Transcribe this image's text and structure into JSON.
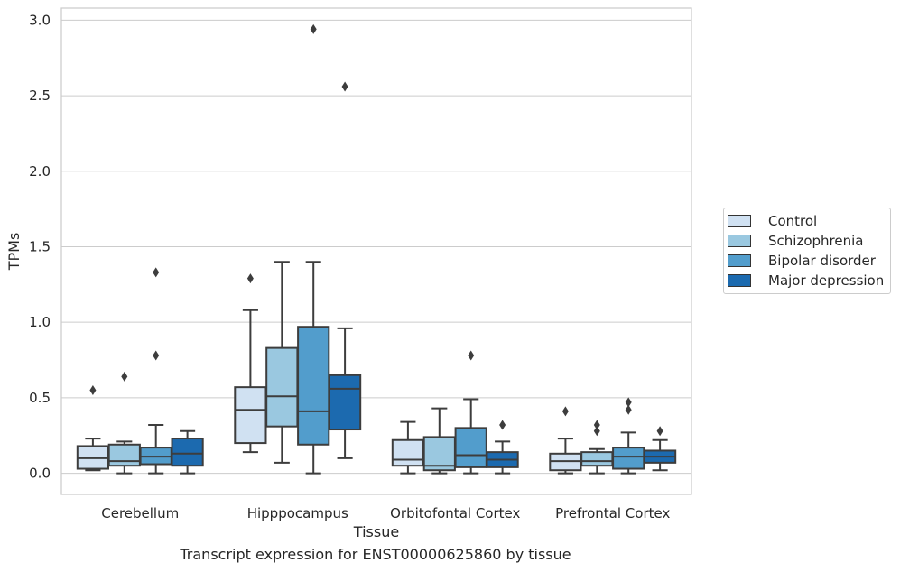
{
  "caption": "Transcript expression for ENST00000625860 by tissue",
  "chart_data": {
    "type": "boxplot",
    "xlabel": "Tissue",
    "ylabel": "TPMs",
    "ylim": [
      -0.14,
      3.08
    ],
    "yticks": [
      "0.0",
      "0.5",
      "1.0",
      "1.5",
      "2.0",
      "2.5",
      "3.0"
    ],
    "grid": true,
    "legend_position": "right",
    "categories": [
      "Cerebellum",
      "Hipppocampus",
      "Orbitofontal Cortex",
      "Prefrontal Cortex"
    ],
    "series": [
      {
        "name": "Control",
        "color": "#d0e1f2",
        "boxes": [
          {
            "whislo": 0.02,
            "q1": 0.03,
            "med": 0.1,
            "q3": 0.18,
            "whishi": 0.23,
            "fliers": [
              0.55
            ]
          },
          {
            "whislo": 0.14,
            "q1": 0.2,
            "med": 0.42,
            "q3": 0.57,
            "whishi": 1.08,
            "fliers": [
              1.29
            ]
          },
          {
            "whislo": 0.0,
            "q1": 0.05,
            "med": 0.09,
            "q3": 0.22,
            "whishi": 0.34,
            "fliers": []
          },
          {
            "whislo": 0.0,
            "q1": 0.02,
            "med": 0.08,
            "q3": 0.13,
            "whishi": 0.23,
            "fliers": [
              0.41
            ]
          }
        ]
      },
      {
        "name": "Schizophrenia",
        "color": "#9ac8e0",
        "boxes": [
          {
            "whislo": 0.0,
            "q1": 0.05,
            "med": 0.08,
            "q3": 0.19,
            "whishi": 0.21,
            "fliers": [
              0.64
            ]
          },
          {
            "whislo": 0.07,
            "q1": 0.31,
            "med": 0.51,
            "q3": 0.83,
            "whishi": 1.4,
            "fliers": []
          },
          {
            "whislo": 0.0,
            "q1": 0.02,
            "med": 0.05,
            "q3": 0.24,
            "whishi": 0.43,
            "fliers": []
          },
          {
            "whislo": 0.0,
            "q1": 0.05,
            "med": 0.08,
            "q3": 0.14,
            "whishi": 0.16,
            "fliers": [
              0.28,
              0.32
            ]
          }
        ]
      },
      {
        "name": "Bipolar disorder",
        "color": "#529dcc",
        "boxes": [
          {
            "whislo": 0.0,
            "q1": 0.06,
            "med": 0.11,
            "q3": 0.17,
            "whishi": 0.32,
            "fliers": [
              0.78,
              1.33
            ]
          },
          {
            "whislo": 0.0,
            "q1": 0.19,
            "med": 0.41,
            "q3": 0.97,
            "whishi": 1.4,
            "fliers": [
              2.94
            ]
          },
          {
            "whislo": 0.0,
            "q1": 0.04,
            "med": 0.12,
            "q3": 0.3,
            "whishi": 0.49,
            "fliers": [
              0.78
            ]
          },
          {
            "whislo": 0.0,
            "q1": 0.03,
            "med": 0.11,
            "q3": 0.17,
            "whishi": 0.27,
            "fliers": [
              0.42,
              0.47
            ]
          }
        ]
      },
      {
        "name": "Major depression",
        "color": "#1c6aaf",
        "boxes": [
          {
            "whislo": 0.0,
            "q1": 0.05,
            "med": 0.13,
            "q3": 0.23,
            "whishi": 0.28,
            "fliers": []
          },
          {
            "whislo": 0.1,
            "q1": 0.29,
            "med": 0.56,
            "q3": 0.65,
            "whishi": 0.96,
            "fliers": [
              2.56
            ]
          },
          {
            "whislo": 0.0,
            "q1": 0.04,
            "med": 0.09,
            "q3": 0.14,
            "whishi": 0.21,
            "fliers": [
              0.32
            ]
          },
          {
            "whislo": 0.02,
            "q1": 0.07,
            "med": 0.11,
            "q3": 0.15,
            "whishi": 0.22,
            "fliers": [
              0.28
            ]
          }
        ]
      }
    ]
  }
}
